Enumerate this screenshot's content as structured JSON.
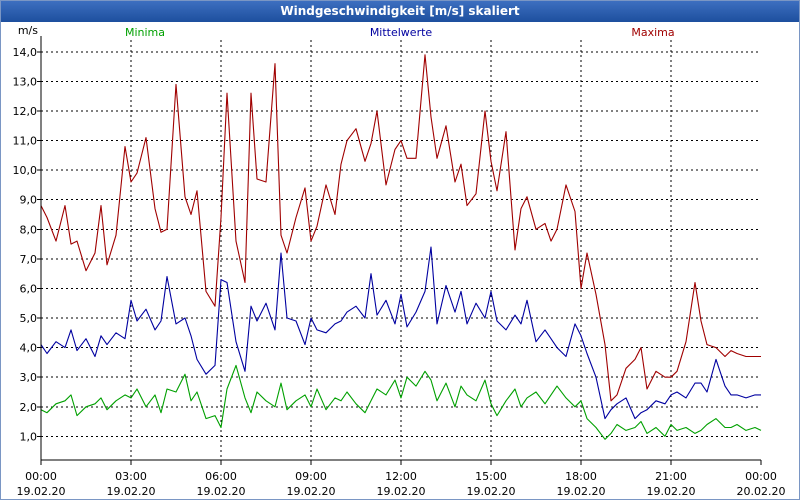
{
  "window": {
    "title": "Windgeschwindigkeit [m/s] skaliert"
  },
  "colors": {
    "minima": "#00a000",
    "mittel": "#0000a0",
    "maxima": "#a00000",
    "grid": "#000000"
  },
  "chart_data": {
    "type": "line",
    "title": "Windgeschwindigkeit [m/s] skaliert",
    "ylabel": "m/s",
    "ylim": [
      0.2,
      14.4
    ],
    "y_ticks": [
      1.0,
      2.0,
      3.0,
      4.0,
      5.0,
      6.0,
      7.0,
      8.0,
      9.0,
      10.0,
      11.0,
      12.0,
      13.0,
      14.0
    ],
    "y_tick_labels": [
      "1,0",
      "2,0",
      "3,0",
      "4,0",
      "5,0",
      "6,0",
      "7,0",
      "8,0",
      "9,0",
      "10,0",
      "11,0",
      "12,0",
      "13,0",
      "14,0"
    ],
    "xlim": [
      0,
      24
    ],
    "x_ticks": [
      0,
      3,
      6,
      9,
      12,
      15,
      18,
      21,
      24
    ],
    "x_tick_times": [
      "00:00",
      "03:00",
      "06:00",
      "09:00",
      "12:00",
      "15:00",
      "18:00",
      "21:00",
      "00:00"
    ],
    "x_tick_dates": [
      "19.02.20",
      "19.02.20",
      "19.02.20",
      "19.02.20",
      "19.02.20",
      "19.02.20",
      "19.02.20",
      "19.02.20",
      "20.02.20"
    ],
    "legend": [
      "Minima",
      "Mittelwerte",
      "Maxima"
    ],
    "series": [
      {
        "name": "Minima",
        "x": [
          0.0,
          0.2,
          0.5,
          0.8,
          1.0,
          1.2,
          1.5,
          1.8,
          2.0,
          2.2,
          2.5,
          2.8,
          3.0,
          3.2,
          3.5,
          3.8,
          4.0,
          4.2,
          4.5,
          4.8,
          5.0,
          5.2,
          5.5,
          5.8,
          6.0,
          6.2,
          6.5,
          6.8,
          7.0,
          7.2,
          7.5,
          7.8,
          8.0,
          8.2,
          8.5,
          8.8,
          9.0,
          9.2,
          9.5,
          9.8,
          10.0,
          10.2,
          10.5,
          10.8,
          11.0,
          11.2,
          11.5,
          11.8,
          12.0,
          12.2,
          12.5,
          12.8,
          13.0,
          13.2,
          13.5,
          13.8,
          14.0,
          14.2,
          14.5,
          14.8,
          15.0,
          15.2,
          15.5,
          15.8,
          16.0,
          16.2,
          16.5,
          16.8,
          17.0,
          17.2,
          17.5,
          17.8,
          18.0,
          18.2,
          18.5,
          18.8,
          19.0,
          19.2,
          19.5,
          19.8,
          20.0,
          20.2,
          20.5,
          20.8,
          21.0,
          21.2,
          21.5,
          21.8,
          22.0,
          22.2,
          22.5,
          22.8,
          23.0,
          23.2,
          23.5,
          23.8,
          24.0
        ],
        "values": [
          1.9,
          1.8,
          2.1,
          2.2,
          2.4,
          1.7,
          2.0,
          2.1,
          2.3,
          1.9,
          2.2,
          2.4,
          2.3,
          2.6,
          2.0,
          2.4,
          1.8,
          2.6,
          2.5,
          3.1,
          2.2,
          2.5,
          1.6,
          1.7,
          1.3,
          2.6,
          3.4,
          2.3,
          1.8,
          2.5,
          2.2,
          2.0,
          2.8,
          1.9,
          2.2,
          2.4,
          2.0,
          2.6,
          1.9,
          2.3,
          2.2,
          2.5,
          2.1,
          1.8,
          2.2,
          2.6,
          2.4,
          2.9,
          2.3,
          3.0,
          2.7,
          3.2,
          2.9,
          2.2,
          2.8,
          2.0,
          2.7,
          2.4,
          2.2,
          2.9,
          2.1,
          1.7,
          2.2,
          2.6,
          2.0,
          2.3,
          2.5,
          2.1,
          2.4,
          2.7,
          2.3,
          2.0,
          2.2,
          1.6,
          1.3,
          0.9,
          1.1,
          1.4,
          1.2,
          1.3,
          1.5,
          1.1,
          1.3,
          1.0,
          1.4,
          1.2,
          1.3,
          1.1,
          1.2,
          1.4,
          1.6,
          1.3,
          1.3,
          1.4,
          1.2,
          1.3,
          1.2
        ]
      },
      {
        "name": "Mittelwerte",
        "x": [
          0.0,
          0.2,
          0.5,
          0.8,
          1.0,
          1.2,
          1.5,
          1.8,
          2.0,
          2.2,
          2.5,
          2.8,
          3.0,
          3.2,
          3.5,
          3.8,
          4.0,
          4.2,
          4.5,
          4.8,
          5.0,
          5.2,
          5.5,
          5.8,
          6.0,
          6.2,
          6.5,
          6.8,
          7.0,
          7.2,
          7.5,
          7.8,
          8.0,
          8.2,
          8.5,
          8.8,
          9.0,
          9.2,
          9.5,
          9.8,
          10.0,
          10.2,
          10.5,
          10.8,
          11.0,
          11.2,
          11.5,
          11.8,
          12.0,
          12.2,
          12.5,
          12.8,
          13.0,
          13.2,
          13.5,
          13.8,
          14.0,
          14.2,
          14.5,
          14.8,
          15.0,
          15.2,
          15.5,
          15.8,
          16.0,
          16.2,
          16.5,
          16.8,
          17.0,
          17.2,
          17.5,
          17.8,
          18.0,
          18.2,
          18.5,
          18.8,
          19.0,
          19.2,
          19.5,
          19.8,
          20.0,
          20.2,
          20.5,
          20.8,
          21.0,
          21.2,
          21.5,
          21.8,
          22.0,
          22.2,
          22.5,
          22.8,
          23.0,
          23.2,
          23.5,
          23.8,
          24.0
        ],
        "values": [
          4.1,
          3.8,
          4.2,
          4.0,
          4.6,
          3.9,
          4.3,
          3.7,
          4.4,
          4.1,
          4.5,
          4.3,
          5.6,
          4.9,
          5.3,
          4.6,
          4.9,
          6.4,
          4.8,
          5.0,
          4.4,
          3.6,
          3.1,
          3.4,
          6.3,
          6.2,
          4.2,
          3.2,
          5.4,
          4.9,
          5.5,
          4.6,
          7.2,
          5.0,
          4.9,
          4.1,
          5.0,
          4.6,
          4.5,
          4.8,
          4.9,
          5.2,
          5.4,
          5.0,
          6.5,
          5.1,
          5.6,
          4.8,
          5.8,
          4.7,
          5.2,
          5.9,
          7.4,
          4.8,
          6.1,
          5.2,
          5.9,
          4.8,
          5.5,
          5.0,
          5.9,
          4.9,
          4.6,
          5.1,
          4.8,
          5.6,
          4.2,
          4.6,
          4.3,
          4.0,
          3.7,
          4.8,
          4.4,
          3.8,
          3.0,
          1.6,
          1.9,
          2.1,
          2.3,
          1.6,
          1.8,
          1.9,
          2.2,
          2.1,
          2.4,
          2.5,
          2.3,
          2.8,
          2.8,
          2.5,
          3.6,
          2.7,
          2.4,
          2.4,
          2.3,
          2.4,
          2.4
        ]
      },
      {
        "name": "Maxima",
        "x": [
          0.0,
          0.2,
          0.5,
          0.8,
          1.0,
          1.2,
          1.5,
          1.8,
          2.0,
          2.2,
          2.5,
          2.8,
          3.0,
          3.2,
          3.5,
          3.8,
          4.0,
          4.2,
          4.5,
          4.8,
          5.0,
          5.2,
          5.5,
          5.8,
          6.0,
          6.2,
          6.5,
          6.8,
          7.0,
          7.2,
          7.5,
          7.8,
          8.0,
          8.2,
          8.5,
          8.8,
          9.0,
          9.2,
          9.5,
          9.8,
          10.0,
          10.2,
          10.5,
          10.8,
          11.0,
          11.2,
          11.5,
          11.8,
          12.0,
          12.2,
          12.5,
          12.8,
          13.0,
          13.2,
          13.5,
          13.8,
          14.0,
          14.2,
          14.5,
          14.8,
          15.0,
          15.2,
          15.5,
          15.8,
          16.0,
          16.2,
          16.5,
          16.8,
          17.0,
          17.2,
          17.5,
          17.8,
          18.0,
          18.2,
          18.5,
          18.8,
          19.0,
          19.2,
          19.5,
          19.8,
          20.0,
          20.2,
          20.5,
          20.8,
          21.0,
          21.2,
          21.5,
          21.8,
          22.0,
          22.2,
          22.5,
          22.8,
          23.0,
          23.2,
          23.5,
          23.8,
          24.0
        ],
        "values": [
          8.8,
          8.4,
          7.6,
          8.8,
          7.5,
          7.6,
          6.6,
          7.2,
          8.8,
          6.8,
          7.8,
          10.8,
          9.6,
          9.9,
          11.1,
          8.7,
          7.9,
          8.0,
          12.9,
          9.1,
          8.5,
          9.3,
          5.9,
          5.4,
          8.4,
          12.6,
          7.6,
          6.2,
          12.6,
          9.7,
          9.6,
          13.6,
          7.8,
          7.2,
          8.4,
          9.4,
          7.6,
          8.1,
          9.5,
          8.5,
          10.2,
          11.0,
          11.4,
          10.3,
          10.9,
          12.0,
          9.5,
          10.7,
          11.0,
          10.4,
          10.4,
          13.9,
          11.8,
          10.4,
          11.5,
          9.6,
          10.2,
          8.8,
          9.2,
          12.0,
          10.3,
          9.3,
          11.3,
          7.3,
          8.7,
          9.1,
          8.0,
          8.2,
          7.6,
          8.0,
          9.5,
          8.6,
          6.0,
          7.2,
          5.8,
          4.1,
          2.2,
          2.4,
          3.3,
          3.6,
          4.0,
          2.6,
          3.2,
          3.0,
          3.0,
          3.2,
          4.2,
          6.2,
          4.9,
          4.1,
          4.0,
          3.7,
          3.9,
          3.8,
          3.7,
          3.7,
          3.7
        ]
      }
    ]
  }
}
